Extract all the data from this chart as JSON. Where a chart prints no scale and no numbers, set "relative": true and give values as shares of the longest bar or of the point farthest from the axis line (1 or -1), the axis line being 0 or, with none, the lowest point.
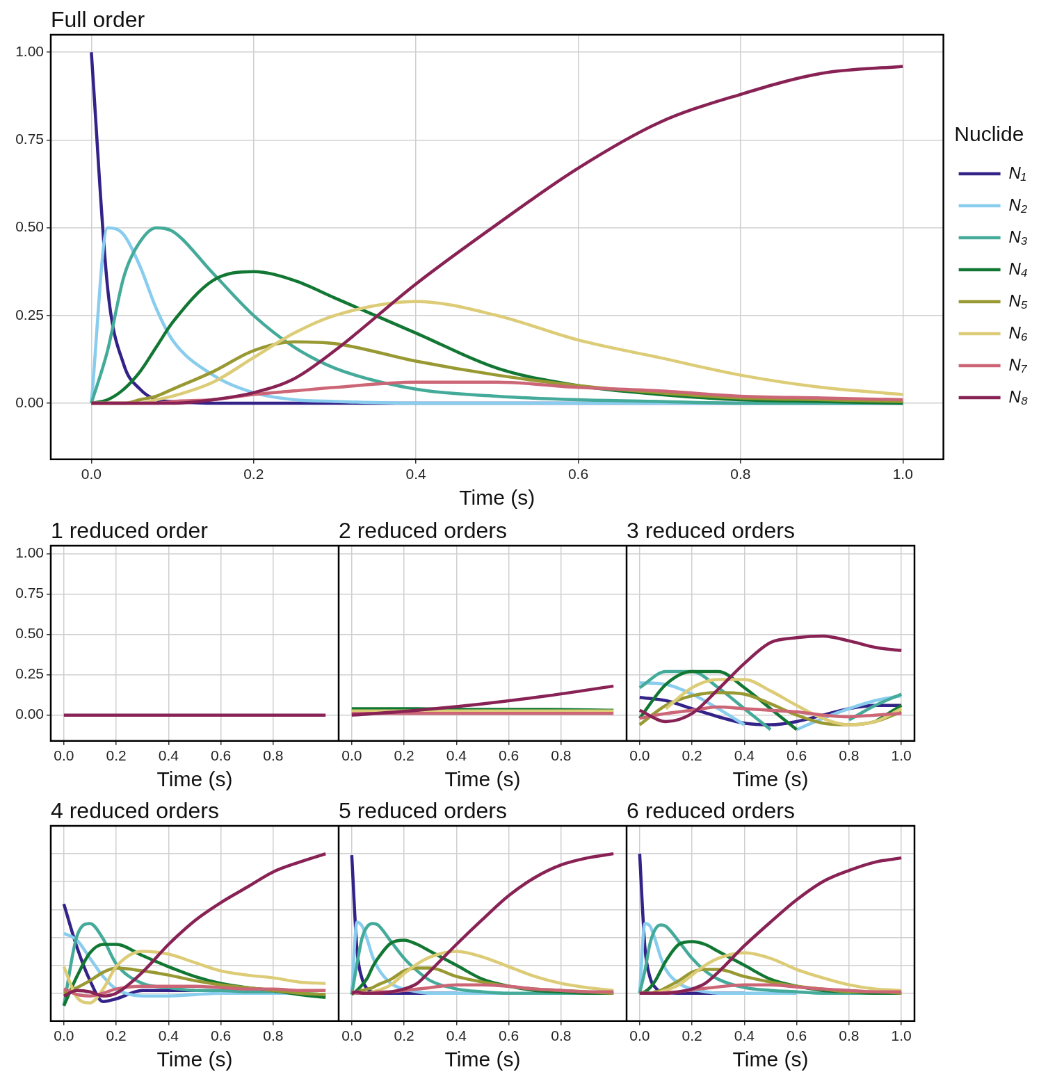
{
  "chart_data": [
    {
      "type": "line",
      "title": "Full order",
      "xlabel": "Time (s)",
      "legend": "right",
      "legend_title": "Nuclide",
      "grid": true,
      "xlim": [
        -0.05,
        1.05
      ],
      "ylim": [
        -0.16,
        1.05
      ],
      "xticks": [
        {
          "value": 0,
          "label": "0.0"
        },
        {
          "value": 0.2,
          "label": "0.2"
        },
        {
          "value": 0.4,
          "label": "0.4"
        },
        {
          "value": 0.6,
          "label": "0.6"
        },
        {
          "value": 0.8,
          "label": "0.8"
        },
        {
          "value": 1,
          "label": "1.0"
        }
      ],
      "yticks": [
        {
          "value": 0,
          "label": "0.00"
        },
        {
          "value": 0.25,
          "label": "0.25"
        },
        {
          "value": 0.5,
          "label": "0.50"
        },
        {
          "value": 0.75,
          "label": "0.75"
        },
        {
          "value": 1,
          "label": "1.00"
        }
      ],
      "x": [
        0,
        0.02,
        0.04,
        0.06,
        0.08,
        0.1,
        0.15,
        0.2,
        0.25,
        0.3,
        0.4,
        0.5,
        0.6,
        0.7,
        0.8,
        0.9,
        1.0
      ],
      "series": [
        {
          "name": "N₁",
          "color": "#332288",
          "values": [
            1,
            0.33,
            0.11,
            0.04,
            0.01,
            0.005,
            0,
            0,
            0,
            0,
            0,
            0,
            0,
            0,
            0,
            0,
            0
          ]
        },
        {
          "name": "N₂",
          "color": "#88ccee",
          "values": [
            0,
            0.5,
            0.48,
            0.39,
            0.27,
            0.18,
            0.08,
            0.03,
            0.01,
            0.005,
            0,
            0,
            0,
            0,
            0,
            0,
            0
          ]
        },
        {
          "name": "N₃",
          "color": "#44aa99",
          "values": [
            0,
            0.15,
            0.36,
            0.46,
            0.5,
            0.49,
            0.37,
            0.25,
            0.16,
            0.1,
            0.04,
            0.02,
            0.01,
            0.005,
            0,
            0,
            0
          ]
        },
        {
          "name": "N₄",
          "color": "#117733",
          "values": [
            0,
            0.01,
            0.04,
            0.09,
            0.16,
            0.23,
            0.35,
            0.375,
            0.35,
            0.3,
            0.2,
            0.1,
            0.05,
            0.025,
            0.01,
            0.005,
            0
          ]
        },
        {
          "name": "N₅",
          "color": "#999933",
          "values": [
            0,
            0,
            0,
            0.01,
            0.02,
            0.04,
            0.09,
            0.15,
            0.175,
            0.17,
            0.12,
            0.08,
            0.05,
            0.03,
            0.015,
            0.01,
            0.005
          ]
        },
        {
          "name": "N₆",
          "color": "#ddcc77",
          "values": [
            0,
            0,
            0,
            0,
            0.01,
            0.02,
            0.06,
            0.13,
            0.2,
            0.25,
            0.29,
            0.25,
            0.18,
            0.13,
            0.08,
            0.045,
            0.025
          ]
        },
        {
          "name": "N₇",
          "color": "#cc6677",
          "values": [
            0,
            0,
            0,
            0,
            0,
            0.005,
            0.01,
            0.025,
            0.035,
            0.045,
            0.06,
            0.06,
            0.045,
            0.035,
            0.02,
            0.015,
            0.01
          ]
        },
        {
          "name": "N₈",
          "color": "#882255",
          "values": [
            0,
            0,
            0,
            0,
            0,
            0,
            0.01,
            0.03,
            0.07,
            0.15,
            0.34,
            0.51,
            0.67,
            0.8,
            0.88,
            0.94,
            0.96
          ]
        }
      ]
    },
    {
      "type": "line",
      "title": "1 reduced order",
      "xlabel": "Time (s)",
      "grid": true,
      "xlim": [
        -0.05,
        1.05
      ],
      "ylim": [
        -0.16,
        1.05
      ],
      "xticks": [
        {
          "value": 0,
          "label": "0.0"
        },
        {
          "value": 0.2,
          "label": "0.2"
        },
        {
          "value": 0.4,
          "label": "0.4"
        },
        {
          "value": 0.6,
          "label": "0.6"
        },
        {
          "value": 0.8,
          "label": "0.8"
        }
      ],
      "yticks": [
        {
          "value": 0,
          "label": "0.00"
        },
        {
          "value": 0.25,
          "label": "0.25"
        },
        {
          "value": 0.5,
          "label": "0.50"
        },
        {
          "value": 0.75,
          "label": "0.75"
        },
        {
          "value": 1,
          "label": "1.00"
        }
      ],
      "x": [
        0,
        1
      ],
      "series": [
        {
          "color": "#882255",
          "values": [
            0,
            0
          ]
        }
      ]
    },
    {
      "type": "line",
      "title": "2 reduced orders",
      "xlabel": "Time (s)",
      "grid": true,
      "tick_labels": "x",
      "xlim": [
        -0.05,
        1.05
      ],
      "ylim": [
        -0.16,
        1.05
      ],
      "xticks": [
        {
          "value": 0,
          "label": "0.0"
        },
        {
          "value": 0.2,
          "label": "0.2"
        },
        {
          "value": 0.4,
          "label": "0.4"
        },
        {
          "value": 0.6,
          "label": "0.6"
        },
        {
          "value": 0.8,
          "label": "0.8"
        }
      ],
      "yticks": [
        0,
        0.25,
        0.5,
        0.75,
        1
      ],
      "x": [
        0,
        0.25,
        0.5,
        0.75,
        1
      ],
      "series": [
        {
          "color": "#117733",
          "values": [
            0.04,
            0.04,
            0.035,
            0.035,
            0.03
          ]
        },
        {
          "color": "#ddcc77",
          "values": [
            0.025,
            0.025,
            0.025,
            0.025,
            0.025
          ]
        },
        {
          "color": "#cc6677",
          "values": [
            0.01,
            0.01,
            0.01,
            0.01,
            0.01
          ]
        },
        {
          "color": "#882255",
          "values": [
            0,
            0.03,
            0.07,
            0.12,
            0.18
          ]
        }
      ]
    },
    {
      "type": "line",
      "title": "3 reduced orders",
      "xlabel": "Time (s)",
      "grid": true,
      "tick_labels": "x",
      "xlim": [
        -0.05,
        1.05
      ],
      "ylim": [
        -0.16,
        1.05
      ],
      "xticks": [
        {
          "value": 0,
          "label": "0.0"
        },
        {
          "value": 0.2,
          "label": "0.2"
        },
        {
          "value": 0.4,
          "label": "0.4"
        },
        {
          "value": 0.6,
          "label": "0.6"
        },
        {
          "value": 0.8,
          "label": "0.8"
        },
        {
          "value": 1,
          "label": "1.0"
        }
      ],
      "yticks": [
        0,
        0.25,
        0.5,
        0.75,
        1
      ],
      "x": [
        0,
        0.1,
        0.2,
        0.3,
        0.4,
        0.5,
        0.6,
        0.7,
        0.8,
        0.9,
        1.0
      ],
      "series": [
        {
          "color": "#332288",
          "values": [
            0.11,
            0.09,
            0.04,
            -0.01,
            -0.05,
            -0.06,
            -0.04,
            0,
            0.04,
            0.06,
            0.06
          ]
        },
        {
          "color": "#88ccee",
          "values": [
            0.2,
            0.19,
            0.13,
            0.04,
            -0.06,
            null,
            -0.09,
            -0.02,
            0.04,
            0.09,
            0.12
          ]
        },
        {
          "color": "#44aa99",
          "values": [
            0.17,
            0.27,
            0.27,
            0.17,
            0.04,
            -0.09,
            null,
            null,
            -0.03,
            0.06,
            0.13
          ]
        },
        {
          "color": "#117733",
          "values": [
            -0.02,
            0.19,
            0.27,
            0.27,
            0.17,
            0.04,
            -0.09,
            null,
            null,
            -0.04,
            0.06
          ]
        },
        {
          "color": "#999933",
          "values": [
            -0.06,
            0.06,
            0.12,
            0.14,
            0.13,
            0.07,
            0,
            -0.05,
            -0.06,
            -0.04,
            0.02
          ]
        },
        {
          "color": "#ddcc77",
          "values": [
            null,
            0.04,
            0.17,
            0.22,
            0.22,
            0.15,
            0.06,
            -0.02,
            -0.06,
            -0.04,
            0.04
          ]
        },
        {
          "color": "#cc6677",
          "values": [
            -0.02,
            0.01,
            0.03,
            0.05,
            0.04,
            0.03,
            0.02,
            0,
            -0.01,
            0,
            0.01
          ]
        },
        {
          "color": "#882255",
          "values": [
            0.03,
            -0.04,
            0.01,
            0.16,
            0.32,
            0.45,
            0.48,
            0.49,
            0.46,
            0.42,
            0.4
          ]
        }
      ]
    },
    {
      "type": "line",
      "title": "4 reduced orders",
      "xlabel": "Time (s)",
      "grid": true,
      "relative": true,
      "tick_labels": "x",
      "xlim": [
        -0.05,
        1.05
      ],
      "xticks": [
        {
          "value": 0,
          "label": "0.0"
        },
        {
          "value": 0.2,
          "label": "0.2"
        },
        {
          "value": 0.4,
          "label": "0.4"
        },
        {
          "value": 0.6,
          "label": "0.6"
        },
        {
          "value": 0.8,
          "label": "0.8"
        }
      ],
      "x": [
        0,
        0.05,
        0.1,
        0.15,
        0.2,
        0.3,
        0.4,
        0.5,
        0.6,
        0.7,
        0.8,
        0.9,
        1.0
      ],
      "series": [
        {
          "color": "#332288",
          "values": [
            0.64,
            0.33,
            0.09,
            -0.06,
            -0.04,
            0.02,
            0.02,
            0.02,
            null,
            null,
            null,
            null,
            null
          ]
        },
        {
          "color": "#88ccee",
          "values": [
            0.43,
            0.38,
            0.25,
            0.12,
            0.03,
            -0.02,
            -0.02,
            -0.01,
            0,
            0,
            0,
            0,
            -0.02
          ]
        },
        {
          "color": "#44aa99",
          "values": [
            -0.09,
            0.41,
            0.5,
            0.39,
            0.21,
            0.07,
            0.04,
            0.02,
            0.02,
            0.01,
            0.01,
            0,
            -0.01
          ]
        },
        {
          "color": "#117733",
          "values": [
            -0.09,
            0.12,
            0.29,
            0.35,
            0.35,
            0.27,
            0.19,
            0.12,
            0.07,
            0.04,
            0.02,
            -0.01,
            -0.03
          ]
        },
        {
          "color": "#999933",
          "values": [
            0,
            0.04,
            0.09,
            0.15,
            0.18,
            0.16,
            0.13,
            0.09,
            0.06,
            0.04,
            0.02,
            0,
            -0.01
          ]
        },
        {
          "color": "#ddcc77",
          "values": [
            0.19,
            -0.03,
            -0.07,
            0.03,
            0.19,
            0.3,
            0.28,
            0.22,
            0.16,
            0.13,
            0.11,
            0.08,
            0.07
          ]
        },
        {
          "color": "#cc6677",
          "values": [
            0.03,
            -0.01,
            -0.02,
            0,
            0.03,
            0.05,
            0.05,
            0.05,
            0.04,
            0.03,
            0.03,
            0.02,
            0.02
          ]
        },
        {
          "color": "#882255",
          "values": [
            -0.02,
            0.02,
            0.01,
            -0.02,
            0,
            0.15,
            0.35,
            0.52,
            0.65,
            0.76,
            0.87,
            0.94,
            1
          ]
        }
      ]
    },
    {
      "type": "line",
      "title": "5 reduced orders",
      "xlabel": "Time (s)",
      "grid": true,
      "relative": true,
      "tick_labels": "x",
      "xlim": [
        -0.05,
        1.05
      ],
      "xticks": [
        {
          "value": 0,
          "label": "0.0"
        },
        {
          "value": 0.2,
          "label": "0.2"
        },
        {
          "value": 0.4,
          "label": "0.4"
        },
        {
          "value": 0.6,
          "label": "0.6"
        },
        {
          "value": 0.8,
          "label": "0.8"
        }
      ],
      "x": [
        0,
        0.02,
        0.04,
        0.06,
        0.08,
        0.1,
        0.15,
        0.2,
        0.25,
        0.3,
        0.4,
        0.5,
        0.6,
        0.7,
        0.8,
        0.9,
        1.0
      ],
      "series": [
        {
          "color": "#332288",
          "values": [
            0.99,
            0.31,
            0.1,
            0.03,
            0.01,
            0,
            0,
            0,
            0,
            0,
            0,
            null,
            null,
            null,
            null,
            null,
            null
          ]
        },
        {
          "color": "#88ccee",
          "values": [
            0,
            0.51,
            0.48,
            0.38,
            0.26,
            0.18,
            0.07,
            0.03,
            0.01,
            0,
            0,
            0,
            0,
            null,
            null,
            null,
            null
          ]
        },
        {
          "color": "#44aa99",
          "values": [
            -0.01,
            0.21,
            0.4,
            0.48,
            0.5,
            0.49,
            0.37,
            0.25,
            0.16,
            0.09,
            0.03,
            0.01,
            0,
            0,
            0,
            0,
            0
          ]
        },
        {
          "color": "#117733",
          "values": [
            -0.01,
            0.02,
            0.06,
            0.11,
            0.19,
            0.25,
            0.36,
            0.38,
            0.35,
            0.3,
            0.2,
            0.1,
            0.05,
            0.02,
            0.01,
            0,
            0
          ]
        },
        {
          "color": "#999933",
          "values": [
            0,
            0.01,
            0.02,
            0.03,
            0.04,
            0.06,
            0.1,
            0.16,
            0.18,
            0.18,
            0.12,
            0.08,
            0.05,
            0.03,
            0.02,
            0.01,
            0
          ]
        },
        {
          "color": "#ddcc77",
          "values": [
            0.01,
            0,
            0,
            0,
            0.01,
            0.02,
            0.06,
            0.14,
            0.21,
            0.26,
            0.3,
            0.26,
            0.19,
            0.12,
            0.07,
            0.04,
            0.02
          ]
        },
        {
          "color": "#cc6677",
          "values": [
            0.01,
            0,
            0,
            0,
            0,
            0.01,
            0.01,
            0.02,
            0.03,
            0.04,
            0.06,
            0.06,
            0.05,
            0.03,
            0.02,
            0.01,
            0.01
          ]
        },
        {
          "color": "#882255",
          "values": [
            0,
            0.01,
            0,
            0,
            0,
            0,
            0.01,
            0.03,
            0.07,
            0.16,
            0.35,
            0.53,
            0.7,
            0.83,
            0.92,
            0.97,
            1
          ]
        }
      ]
    },
    {
      "type": "line",
      "title": "6 reduced orders",
      "xlabel": "Time (s)",
      "grid": true,
      "relative": true,
      "tick_labels": "x",
      "xlim": [
        -0.05,
        1.05
      ],
      "xticks": [
        {
          "value": 0,
          "label": "0.0"
        },
        {
          "value": 0.2,
          "label": "0.2"
        },
        {
          "value": 0.4,
          "label": "0.4"
        },
        {
          "value": 0.6,
          "label": "0.6"
        },
        {
          "value": 0.8,
          "label": "0.8"
        },
        {
          "value": 1,
          "label": "1.0"
        }
      ],
      "x": [
        0,
        0.02,
        0.04,
        0.06,
        0.08,
        0.1,
        0.15,
        0.2,
        0.25,
        0.3,
        0.4,
        0.5,
        0.6,
        0.7,
        0.8,
        0.9,
        1.0
      ],
      "series": [
        {
          "color": "#332288",
          "values": [
            1,
            0.33,
            0.11,
            0.04,
            0.01,
            0.005,
            0,
            0,
            0,
            0,
            0,
            null,
            null,
            null,
            null,
            null,
            null
          ]
        },
        {
          "color": "#88ccee",
          "values": [
            0,
            0.5,
            0.48,
            0.38,
            0.26,
            0.17,
            0.07,
            0.03,
            0.01,
            0,
            0,
            0,
            0,
            null,
            null,
            null,
            null
          ]
        },
        {
          "color": "#44aa99",
          "values": [
            0,
            0.16,
            0.36,
            0.46,
            0.49,
            0.48,
            0.37,
            0.25,
            0.16,
            0.1,
            0.04,
            0.02,
            0.01,
            0,
            0,
            0,
            0
          ]
        },
        {
          "color": "#117733",
          "values": [
            0,
            0.01,
            0.04,
            0.09,
            0.16,
            0.23,
            0.35,
            0.37,
            0.35,
            0.3,
            0.2,
            0.1,
            0.05,
            0.02,
            0.01,
            0,
            0
          ]
        },
        {
          "color": "#999933",
          "values": [
            0,
            0,
            0,
            0.01,
            0.02,
            0.04,
            0.09,
            0.15,
            0.17,
            0.17,
            0.12,
            0.08,
            0.05,
            0.03,
            0.01,
            0.01,
            0
          ]
        },
        {
          "color": "#ddcc77",
          "values": [
            0,
            0,
            0,
            0,
            0.01,
            0.02,
            0.06,
            0.13,
            0.2,
            0.25,
            0.29,
            0.25,
            0.17,
            0.11,
            0.06,
            0.03,
            0.02
          ]
        },
        {
          "color": "#cc6677",
          "values": [
            0,
            0,
            0,
            0,
            0,
            0.005,
            0.01,
            0.025,
            0.035,
            0.045,
            0.06,
            0.06,
            0.045,
            0.03,
            0.02,
            0.01,
            0.01
          ]
        },
        {
          "color": "#882255",
          "values": [
            0,
            0,
            0,
            0,
            0,
            0,
            0.01,
            0.03,
            0.07,
            0.15,
            0.34,
            0.51,
            0.67,
            0.8,
            0.88,
            0.94,
            0.97
          ]
        }
      ]
    }
  ]
}
